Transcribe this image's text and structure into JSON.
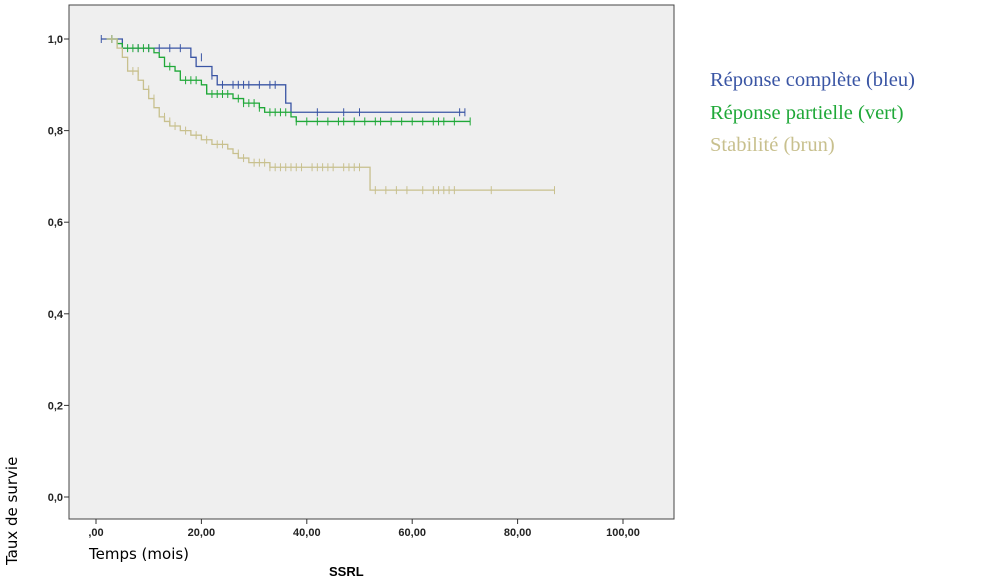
{
  "chart_data": {
    "type": "line",
    "step": true,
    "xlabel": "Temps (mois)",
    "xsublabel": "SSRL",
    "ylabel": "Taux de survie",
    "xlim": [
      0,
      100
    ],
    "ylim": [
      0,
      1
    ],
    "x_ticks": [
      0,
      20,
      40,
      60,
      80,
      100
    ],
    "x_tick_labels": [
      ",00",
      "20,00",
      "40,00",
      "60,00",
      "80,00",
      "100,00"
    ],
    "y_ticks": [
      0,
      0.2,
      0.4,
      0.6,
      0.8,
      1.0
    ],
    "y_tick_labels": [
      "0,0",
      "0,2",
      "0,4",
      "0,6",
      "0,8",
      "1,0"
    ],
    "legend": [
      "Réponse complète (bleu)",
      "Réponse partielle (vert)",
      "Stabilité (brun)"
    ],
    "legend_placement": "right",
    "series": [
      {
        "name": "Réponse complète (bleu)",
        "color": "#3a55a4",
        "steps": [
          [
            1,
            1.0
          ],
          [
            5,
            0.98
          ],
          [
            18,
            0.96
          ],
          [
            19,
            0.94
          ],
          [
            22,
            0.92
          ],
          [
            23,
            0.9
          ],
          [
            36,
            0.86
          ],
          [
            37,
            0.84
          ],
          [
            70,
            0.84
          ]
        ],
        "censored": [
          [
            1,
            1.0
          ],
          [
            3,
            1.0
          ],
          [
            8,
            0.98
          ],
          [
            10,
            0.98
          ],
          [
            12,
            0.98
          ],
          [
            14,
            0.98
          ],
          [
            16,
            0.98
          ],
          [
            20,
            0.96
          ],
          [
            22,
            0.92
          ],
          [
            24,
            0.9
          ],
          [
            26,
            0.9
          ],
          [
            27,
            0.9
          ],
          [
            28,
            0.9
          ],
          [
            29,
            0.9
          ],
          [
            31,
            0.9
          ],
          [
            33,
            0.9
          ],
          [
            34,
            0.9
          ],
          [
            42,
            0.84
          ],
          [
            47,
            0.84
          ],
          [
            50,
            0.84
          ],
          [
            69,
            0.84
          ],
          [
            70,
            0.84
          ]
        ]
      },
      {
        "name": "Réponse partielle (vert)",
        "color": "#1fa838",
        "steps": [
          [
            2,
            1.0
          ],
          [
            4,
            0.99
          ],
          [
            5,
            0.98
          ],
          [
            11,
            0.97
          ],
          [
            12,
            0.96
          ],
          [
            13,
            0.94
          ],
          [
            15,
            0.93
          ],
          [
            16,
            0.91
          ],
          [
            20,
            0.9
          ],
          [
            21,
            0.88
          ],
          [
            26,
            0.87
          ],
          [
            28,
            0.86
          ],
          [
            31,
            0.85
          ],
          [
            32,
            0.84
          ],
          [
            37,
            0.83
          ],
          [
            38,
            0.82
          ],
          [
            71,
            0.82
          ]
        ],
        "censored": [
          [
            3,
            1.0
          ],
          [
            4,
            0.99
          ],
          [
            6,
            0.98
          ],
          [
            7,
            0.98
          ],
          [
            8,
            0.98
          ],
          [
            9,
            0.98
          ],
          [
            10,
            0.98
          ],
          [
            14,
            0.94
          ],
          [
            17,
            0.91
          ],
          [
            18,
            0.91
          ],
          [
            19,
            0.91
          ],
          [
            21,
            0.89
          ],
          [
            22,
            0.88
          ],
          [
            23,
            0.88
          ],
          [
            24,
            0.88
          ],
          [
            25,
            0.88
          ],
          [
            27,
            0.87
          ],
          [
            28,
            0.86
          ],
          [
            29,
            0.86
          ],
          [
            30,
            0.86
          ],
          [
            31,
            0.85
          ],
          [
            33,
            0.84
          ],
          [
            34,
            0.84
          ],
          [
            35,
            0.84
          ],
          [
            36,
            0.84
          ],
          [
            38,
            0.82
          ],
          [
            40,
            0.82
          ],
          [
            42,
            0.82
          ],
          [
            44,
            0.82
          ],
          [
            46,
            0.82
          ],
          [
            47,
            0.82
          ],
          [
            49,
            0.82
          ],
          [
            51,
            0.82
          ],
          [
            53,
            0.82
          ],
          [
            54,
            0.82
          ],
          [
            56,
            0.82
          ],
          [
            58,
            0.82
          ],
          [
            60,
            0.82
          ],
          [
            62,
            0.82
          ],
          [
            64,
            0.82
          ],
          [
            65,
            0.82
          ],
          [
            66,
            0.82
          ],
          [
            68,
            0.82
          ],
          [
            71,
            0.82
          ]
        ]
      },
      {
        "name": "Stabilité (brun)",
        "color": "#c8c08e",
        "steps": [
          [
            2,
            1.0
          ],
          [
            4,
            0.98
          ],
          [
            5,
            0.96
          ],
          [
            6,
            0.93
          ],
          [
            8,
            0.91
          ],
          [
            9,
            0.89
          ],
          [
            10,
            0.87
          ],
          [
            11,
            0.85
          ],
          [
            12,
            0.83
          ],
          [
            13,
            0.82
          ],
          [
            14,
            0.81
          ],
          [
            16,
            0.8
          ],
          [
            18,
            0.79
          ],
          [
            20,
            0.78
          ],
          [
            22,
            0.77
          ],
          [
            25,
            0.76
          ],
          [
            26,
            0.75
          ],
          [
            27,
            0.74
          ],
          [
            29,
            0.73
          ],
          [
            33,
            0.72
          ],
          [
            52,
            0.67
          ],
          [
            87,
            0.67
          ]
        ],
        "censored": [
          [
            3,
            1.0
          ],
          [
            7,
            0.93
          ],
          [
            8,
            0.93
          ],
          [
            10,
            0.89
          ],
          [
            11,
            0.87
          ],
          [
            13,
            0.83
          ],
          [
            14,
            0.82
          ],
          [
            15,
            0.81
          ],
          [
            17,
            0.8
          ],
          [
            19,
            0.79
          ],
          [
            21,
            0.78
          ],
          [
            23,
            0.77
          ],
          [
            24,
            0.77
          ],
          [
            27,
            0.75
          ],
          [
            28,
            0.74
          ],
          [
            30,
            0.73
          ],
          [
            31,
            0.73
          ],
          [
            32,
            0.73
          ],
          [
            33,
            0.72
          ],
          [
            34,
            0.72
          ],
          [
            35,
            0.72
          ],
          [
            36,
            0.72
          ],
          [
            37,
            0.72
          ],
          [
            38,
            0.72
          ],
          [
            39,
            0.72
          ],
          [
            41,
            0.72
          ],
          [
            42,
            0.72
          ],
          [
            43,
            0.72
          ],
          [
            44,
            0.72
          ],
          [
            45,
            0.72
          ],
          [
            47,
            0.72
          ],
          [
            48,
            0.72
          ],
          [
            49,
            0.72
          ],
          [
            50,
            0.72
          ],
          [
            53,
            0.67
          ],
          [
            55,
            0.67
          ],
          [
            57,
            0.67
          ],
          [
            59,
            0.67
          ],
          [
            62,
            0.67
          ],
          [
            64,
            0.67
          ],
          [
            65,
            0.67
          ],
          [
            66,
            0.67
          ],
          [
            67,
            0.67
          ],
          [
            68,
            0.67
          ],
          [
            75,
            0.67
          ],
          [
            87,
            0.67
          ]
        ]
      }
    ]
  }
}
